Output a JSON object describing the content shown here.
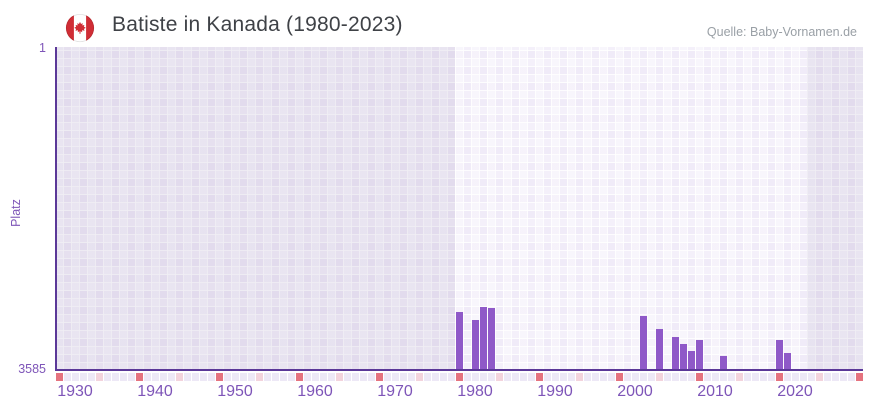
{
  "header": {
    "title": "Batiste in Kanada (1980-2023)",
    "source": "Quelle: Baby-Vornamen.de"
  },
  "chart_data": {
    "type": "bar",
    "title": "Batiste in Kanada (1980-2023)",
    "ylabel": "Platz",
    "xlabel": "",
    "legend": "none",
    "grid": "on",
    "y_axis": {
      "min": 1,
      "max": 3585,
      "inverted": true,
      "top_label": "1",
      "bottom_label": "3585"
    },
    "x_axis": {
      "start_year": 1928,
      "end_year": 2028,
      "tick_years": [
        1930,
        1940,
        1950,
        1960,
        1970,
        1980,
        1990,
        2000,
        2010,
        2020
      ]
    },
    "bars": [
      {
        "year": 1978,
        "rank": 2945
      },
      {
        "year": 1980,
        "rank": 3035
      },
      {
        "year": 1981,
        "rank": 2890
      },
      {
        "year": 1982,
        "rank": 2905
      },
      {
        "year": 2001,
        "rank": 2990
      },
      {
        "year": 2003,
        "rank": 3135
      },
      {
        "year": 2005,
        "rank": 3230
      },
      {
        "year": 2006,
        "rank": 3300
      },
      {
        "year": 2007,
        "rank": 3385
      },
      {
        "year": 2008,
        "rank": 3255
      },
      {
        "year": 2011,
        "rank": 3435
      },
      {
        "year": 2018,
        "rank": 3255
      },
      {
        "year": 2019,
        "rank": 3405
      }
    ],
    "no_data_bands": [
      {
        "from_year": 1928,
        "to_year": 1977
      },
      {
        "from_year": 2022,
        "to_year": 2028
      }
    ],
    "period_markers": {
      "first_year": 1928,
      "every_years": 5,
      "dark_every_years": 10
    },
    "colors": {
      "bar": "#8f59c8",
      "axis_line": "#5b3898",
      "axis_label": "#7e55b8",
      "title_text": "#3f4247",
      "source_text": "#9aa0a6",
      "marker_dark": "#e5737f",
      "marker_light": "#f3d3dc",
      "marker_default": "#ede8f6",
      "plot_cell": "#f0ebf8",
      "flag_red": "#d02d35"
    }
  }
}
